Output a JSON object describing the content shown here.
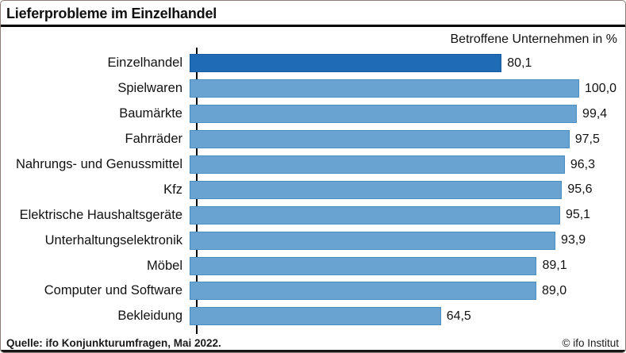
{
  "header": {
    "title": "Lieferprobleme im Einzelhandel"
  },
  "chart_data": {
    "type": "bar",
    "orientation": "horizontal",
    "title": "Lieferprobleme im Einzelhandel",
    "unit_label": "Betroffene Unternehmen in %",
    "xlim": [
      0,
      100
    ],
    "grid": false,
    "legend": "none",
    "categories": [
      "Einzelhandel",
      "Spielwaren",
      "Baumärkte",
      "Fahrräder",
      "Nahrungs- und Genussmittel",
      "Kfz",
      "Elektrische Haushaltsgeräte",
      "Unterhaltungselektronik",
      "Möbel",
      "Computer und Software",
      "Bekleidung"
    ],
    "values": [
      80.1,
      100.0,
      99.4,
      97.5,
      96.3,
      95.6,
      95.1,
      93.9,
      89.1,
      89.0,
      64.5
    ],
    "value_labels": [
      "80,1",
      "100,0",
      "99,4",
      "97,5",
      "96,3",
      "95,6",
      "95,1",
      "93,9",
      "89,1",
      "89,0",
      "64,5"
    ],
    "highlight_index": 0,
    "colors": {
      "highlight_bar": "#1f6cb4",
      "default_bar": "#68a3d2",
      "highlight_border": "#15599c",
      "default_border": "#4a8cbe",
      "axis": "#000000"
    }
  },
  "footer": {
    "source": "Quelle: ifo Konjunkturumfragen, Mai 2022.",
    "copyright": "© ifo Institut"
  }
}
